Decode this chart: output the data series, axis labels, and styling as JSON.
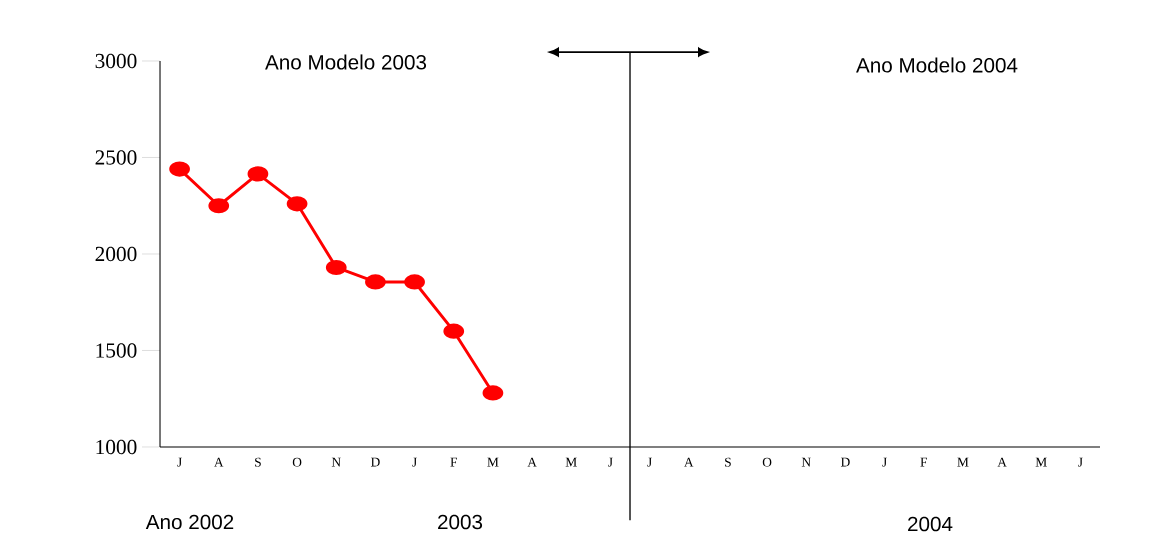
{
  "chart_data": {
    "type": "line",
    "categories": [
      "J",
      "A",
      "S",
      "O",
      "N",
      "D",
      "J",
      "F",
      "M",
      "A",
      "M",
      "J",
      "J",
      "A",
      "S",
      "O",
      "N",
      "D",
      "J",
      "F",
      "M",
      "A",
      "M",
      "J"
    ],
    "series": [
      {
        "color": "#ff0000",
        "values": [
          2440,
          2250,
          2415,
          2260,
          1930,
          1855,
          1855,
          1600,
          1280,
          null,
          null,
          null,
          null,
          null,
          null,
          null,
          null,
          null,
          null,
          null,
          null,
          null,
          null,
          null
        ]
      }
    ],
    "ylim": [
      1000,
      3000
    ],
    "yticks": [
      1000,
      1500,
      2000,
      2500,
      3000
    ],
    "marker": "circle",
    "line_style": "solid",
    "annotations": [
      "Ano Modelo 2003",
      "Ano Modelo 2004",
      "Ano 2002",
      "2003",
      "2004"
    ]
  }
}
